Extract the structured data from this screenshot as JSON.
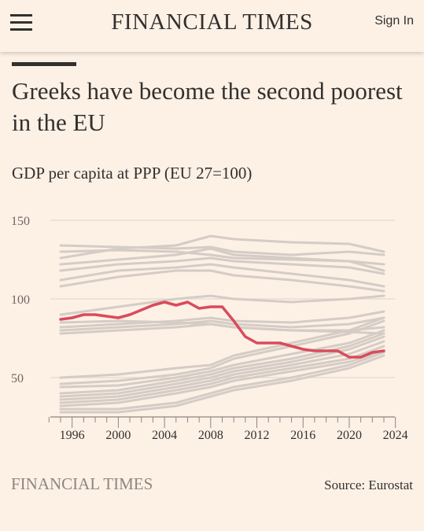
{
  "header": {
    "masthead": "FINANCIAL TIMES",
    "signin_label": "Sign In",
    "menu_icon": "hamburger-menu-icon"
  },
  "article": {
    "headline": "Greeks have become the second poorest in the EU",
    "subtitle": "GDP per capita at PPP (EU 27=100)"
  },
  "footer": {
    "brand": "FINANCIAL TIMES",
    "source": "Source: Eurostat"
  },
  "colors": {
    "background": "#fdf1e6",
    "highlight": "#d94b5b",
    "others": "#d5ccc6",
    "grid": "#e7ddd4",
    "text": "#33302e"
  },
  "chart_data": {
    "type": "line",
    "title": "GDP per capita at PPP (EU 27=100)",
    "ylim": [
      20,
      155
    ],
    "xlim": [
      1994,
      2024
    ],
    "yticks": [
      50,
      100,
      150
    ],
    "ytick_labels": [
      "50",
      "100",
      "150"
    ],
    "xticks": [
      1996,
      2000,
      2004,
      2008,
      2012,
      2016,
      2020,
      2024
    ],
    "xtick_labels": [
      "1996",
      "2000",
      "2004",
      "2008",
      "2012",
      "2016",
      "2020",
      "2024"
    ],
    "grid": true,
    "highlight": {
      "x": [
        1995,
        1996,
        1997,
        1998,
        1999,
        2000,
        2001,
        2002,
        2003,
        2004,
        2005,
        2006,
        2007,
        2008,
        2009,
        2010,
        2011,
        2012,
        2013,
        2014,
        2015,
        2016,
        2017,
        2018,
        2019,
        2020,
        2021,
        2022,
        2023
      ],
      "values": [
        87,
        88,
        90,
        90,
        89,
        88,
        90,
        93,
        96,
        98,
        96,
        98,
        94,
        95,
        95,
        86,
        76,
        72,
        72,
        72,
        70,
        68,
        67,
        67,
        67,
        63,
        63,
        66,
        67
      ]
    },
    "background_series": [
      {
        "x": [
          1995,
          2000,
          2005,
          2008,
          2010,
          2015,
          2020,
          2023
        ],
        "values": [
          134,
          133,
          132,
          133,
          130,
          128,
          130,
          128
        ]
      },
      {
        "x": [
          1995,
          2000,
          2005,
          2008,
          2010,
          2015,
          2020,
          2023
        ],
        "values": [
          130,
          131,
          130,
          128,
          126,
          125,
          124,
          122
        ]
      },
      {
        "x": [
          1995,
          2000,
          2005,
          2008,
          2010,
          2015,
          2020,
          2023
        ],
        "values": [
          126,
          132,
          134,
          140,
          138,
          136,
          135,
          130
        ]
      },
      {
        "x": [
          1995,
          2000,
          2005,
          2008,
          2010,
          2015,
          2020,
          2023
        ],
        "values": [
          122,
          125,
          128,
          132,
          128,
          126,
          124,
          118
        ]
      },
      {
        "x": [
          1995,
          2000,
          2005,
          2008,
          2010,
          2015,
          2020,
          2023
        ],
        "values": [
          118,
          122,
          124,
          126,
          124,
          122,
          120,
          116
        ]
      },
      {
        "x": [
          1995,
          2000,
          2005,
          2008,
          2010,
          2015,
          2020,
          2023
        ],
        "values": [
          112,
          118,
          120,
          122,
          120,
          116,
          112,
          108
        ]
      },
      {
        "x": [
          1995,
          2000,
          2005,
          2008,
          2010,
          2015,
          2020,
          2023
        ],
        "values": [
          108,
          114,
          118,
          118,
          115,
          112,
          108,
          105
        ]
      },
      {
        "x": [
          1995,
          2000,
          2005,
          2008,
          2010,
          2015,
          2020,
          2023
        ],
        "values": [
          90,
          95,
          100,
          102,
          100,
          98,
          100,
          102
        ]
      },
      {
        "x": [
          1995,
          2000,
          2005,
          2008,
          2010,
          2015,
          2020,
          2023
        ],
        "values": [
          82,
          84,
          86,
          88,
          86,
          85,
          88,
          92
        ]
      },
      {
        "x": [
          1995,
          2000,
          2005,
          2008,
          2010,
          2015,
          2020,
          2023
        ],
        "values": [
          80,
          82,
          84,
          86,
          84,
          82,
          84,
          88
        ]
      },
      {
        "x": [
          1995,
          2000,
          2005,
          2008,
          2010,
          2015,
          2020,
          2023
        ],
        "values": [
          85,
          86,
          85,
          84,
          82,
          80,
          79,
          78
        ]
      },
      {
        "x": [
          1995,
          2000,
          2005,
          2008,
          2010,
          2015,
          2020,
          2023
        ],
        "values": [
          78,
          80,
          82,
          84,
          82,
          80,
          80,
          82
        ]
      },
      {
        "x": [
          1995,
          2000,
          2005,
          2008,
          2010,
          2015,
          2020,
          2023
        ],
        "values": [
          50,
          52,
          56,
          58,
          64,
          72,
          80,
          88
        ]
      },
      {
        "x": [
          1995,
          2000,
          2005,
          2008,
          2010,
          2015,
          2020,
          2023
        ],
        "values": [
          46,
          48,
          52,
          56,
          62,
          70,
          78,
          86
        ]
      },
      {
        "x": [
          1995,
          2000,
          2005,
          2008,
          2010,
          2015,
          2020,
          2023
        ],
        "values": [
          44,
          45,
          50,
          54,
          58,
          65,
          72,
          80
        ]
      },
      {
        "x": [
          1995,
          2000,
          2005,
          2008,
          2010,
          2015,
          2020,
          2023
        ],
        "values": [
          40,
          42,
          48,
          52,
          56,
          62,
          70,
          78
        ]
      },
      {
        "x": [
          1995,
          2000,
          2005,
          2008,
          2010,
          2015,
          2020,
          2023
        ],
        "values": [
          38,
          40,
          46,
          50,
          54,
          60,
          68,
          76
        ]
      },
      {
        "x": [
          1995,
          2000,
          2005,
          2008,
          2010,
          2015,
          2020,
          2023
        ],
        "values": [
          36,
          38,
          44,
          48,
          52,
          58,
          65,
          73
        ]
      },
      {
        "x": [
          1995,
          2000,
          2005,
          2008,
          2010,
          2015,
          2020,
          2023
        ],
        "values": [
          34,
          36,
          42,
          46,
          50,
          56,
          62,
          70
        ]
      },
      {
        "x": [
          1995,
          2000,
          2005,
          2008,
          2010,
          2015,
          2020,
          2023
        ],
        "values": [
          32,
          34,
          40,
          44,
          48,
          54,
          60,
          67
        ]
      },
      {
        "x": [
          1995,
          2000,
          2005,
          2008,
          2010,
          2015,
          2020,
          2023
        ],
        "values": [
          30,
          30,
          34,
          40,
          44,
          50,
          58,
          66
        ]
      },
      {
        "x": [
          1995,
          2000,
          2005,
          2008,
          2010,
          2015,
          2020,
          2023
        ],
        "values": [
          28,
          28,
          32,
          38,
          42,
          48,
          56,
          64
        ]
      }
    ]
  }
}
